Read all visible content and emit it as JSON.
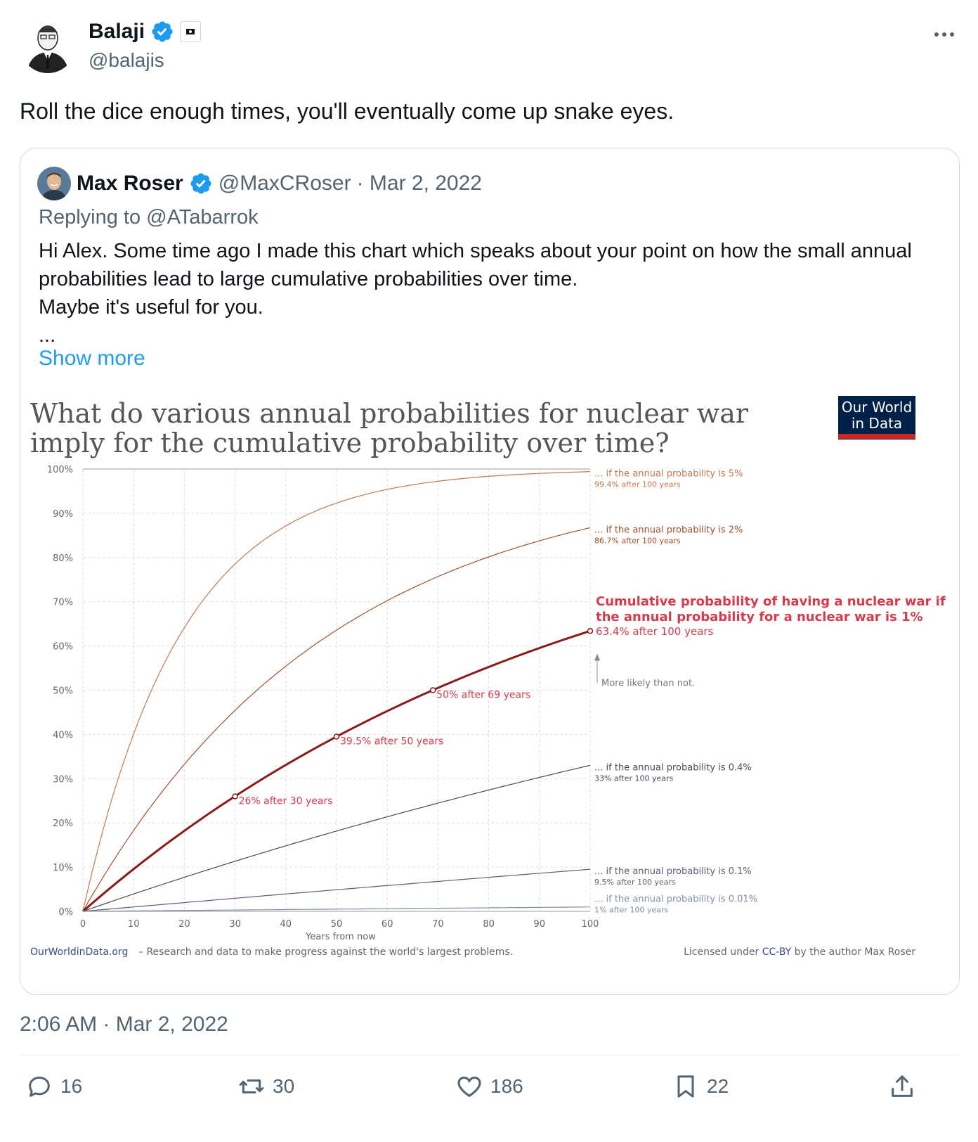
{
  "tweet": {
    "author_name": "Balaji",
    "author_handle": "@balajis",
    "text": "Roll the dice enough times, you'll eventually come up snake eyes.",
    "timestamp": "2:06 AM · Mar 2, 2022"
  },
  "quote": {
    "author_name": "Max Roser",
    "author_handle": "@MaxCRoser",
    "date": "· Mar 2, 2022",
    "reply_to": "Replying to @ATabarrok",
    "text": "Hi Alex. Some time ago I made this chart which speaks about your point on how the small annual probabilities lead to large cumulative probabilities over time.\nMaybe it's useful for you.\n...",
    "show_more": "Show more"
  },
  "actions": {
    "replies": "16",
    "reposts": "30",
    "likes": "186",
    "bookmarks": "22"
  },
  "colors": {
    "link_blue": "#1d9bf0",
    "verified_blue": "#1d9bf0",
    "highlight_red": "#d73a4a",
    "dark_red": "#8b1a1a",
    "owid_navy": "#002147",
    "owid_red": "#ce261e"
  },
  "chart_data": {
    "type": "line",
    "title_line1": "What do various annual probabilities for nuclear war",
    "title_line2": "imply for the cumulative probability over time?",
    "xlabel": "Years from now",
    "ylabel": "",
    "xlim": [
      0,
      100
    ],
    "ylim": [
      0,
      100
    ],
    "x_ticks": [
      "0",
      "10",
      "20",
      "30",
      "40",
      "50",
      "60",
      "70",
      "80",
      "90",
      "100"
    ],
    "y_ticks": [
      "0%",
      "10%",
      "20%",
      "30%",
      "40%",
      "50%",
      "60%",
      "70%",
      "80%",
      "90%",
      "100%"
    ],
    "logo_line1": "Our World",
    "logo_line2": "in Data",
    "series": [
      {
        "annual_pct": 5,
        "label": "... if the annual probability is 5%",
        "sublabel": "99.4% after 100 years",
        "color": "#c07a50",
        "highlight": false
      },
      {
        "annual_pct": 2,
        "label": "... if the annual probability is 2%",
        "sublabel": "86.7% after 100 years",
        "color": "#a0522d",
        "highlight": false
      },
      {
        "annual_pct": 1,
        "label_line1": "Cumulative probability of having a nuclear war if",
        "label_line2": "the annual probability for a nuclear war is 1%",
        "sublabel": "63.4% after 100 years",
        "color": "#8b1a1a",
        "highlight": true
      },
      {
        "annual_pct": 0.4,
        "label": "... if the annual probability is 0.4%",
        "sublabel": "33% after 100 years",
        "color": "#4a4a5a",
        "highlight": false
      },
      {
        "annual_pct": 0.1,
        "label": "... if the annual probability is 0.1%",
        "sublabel": "9.5% after 100 years",
        "color": "#5a6070",
        "highlight": false
      },
      {
        "annual_pct": 0.01,
        "label": "... if the annual probability is 0.01%",
        "sublabel": "1% after 100 years",
        "color": "#8090a0",
        "highlight": false
      }
    ],
    "markers": [
      {
        "x": 30,
        "y": 26,
        "label": "26% after 30 years"
      },
      {
        "x": 50,
        "y": 39.5,
        "label": "39.5% after 50 years"
      },
      {
        "x": 69,
        "y": 50,
        "label": "50% after 69 years"
      },
      {
        "x": 100,
        "y": 63.4,
        "label": ""
      }
    ],
    "annotation": "More likely than not.",
    "footer_left_link": "OurWorldinData.org",
    "footer_left_text": " – Research and data to make progress against the world's largest problems.",
    "footer_right_text1": "Licensed under ",
    "footer_right_link": "CC-BY",
    "footer_right_text2": " by the author Max Roser"
  }
}
